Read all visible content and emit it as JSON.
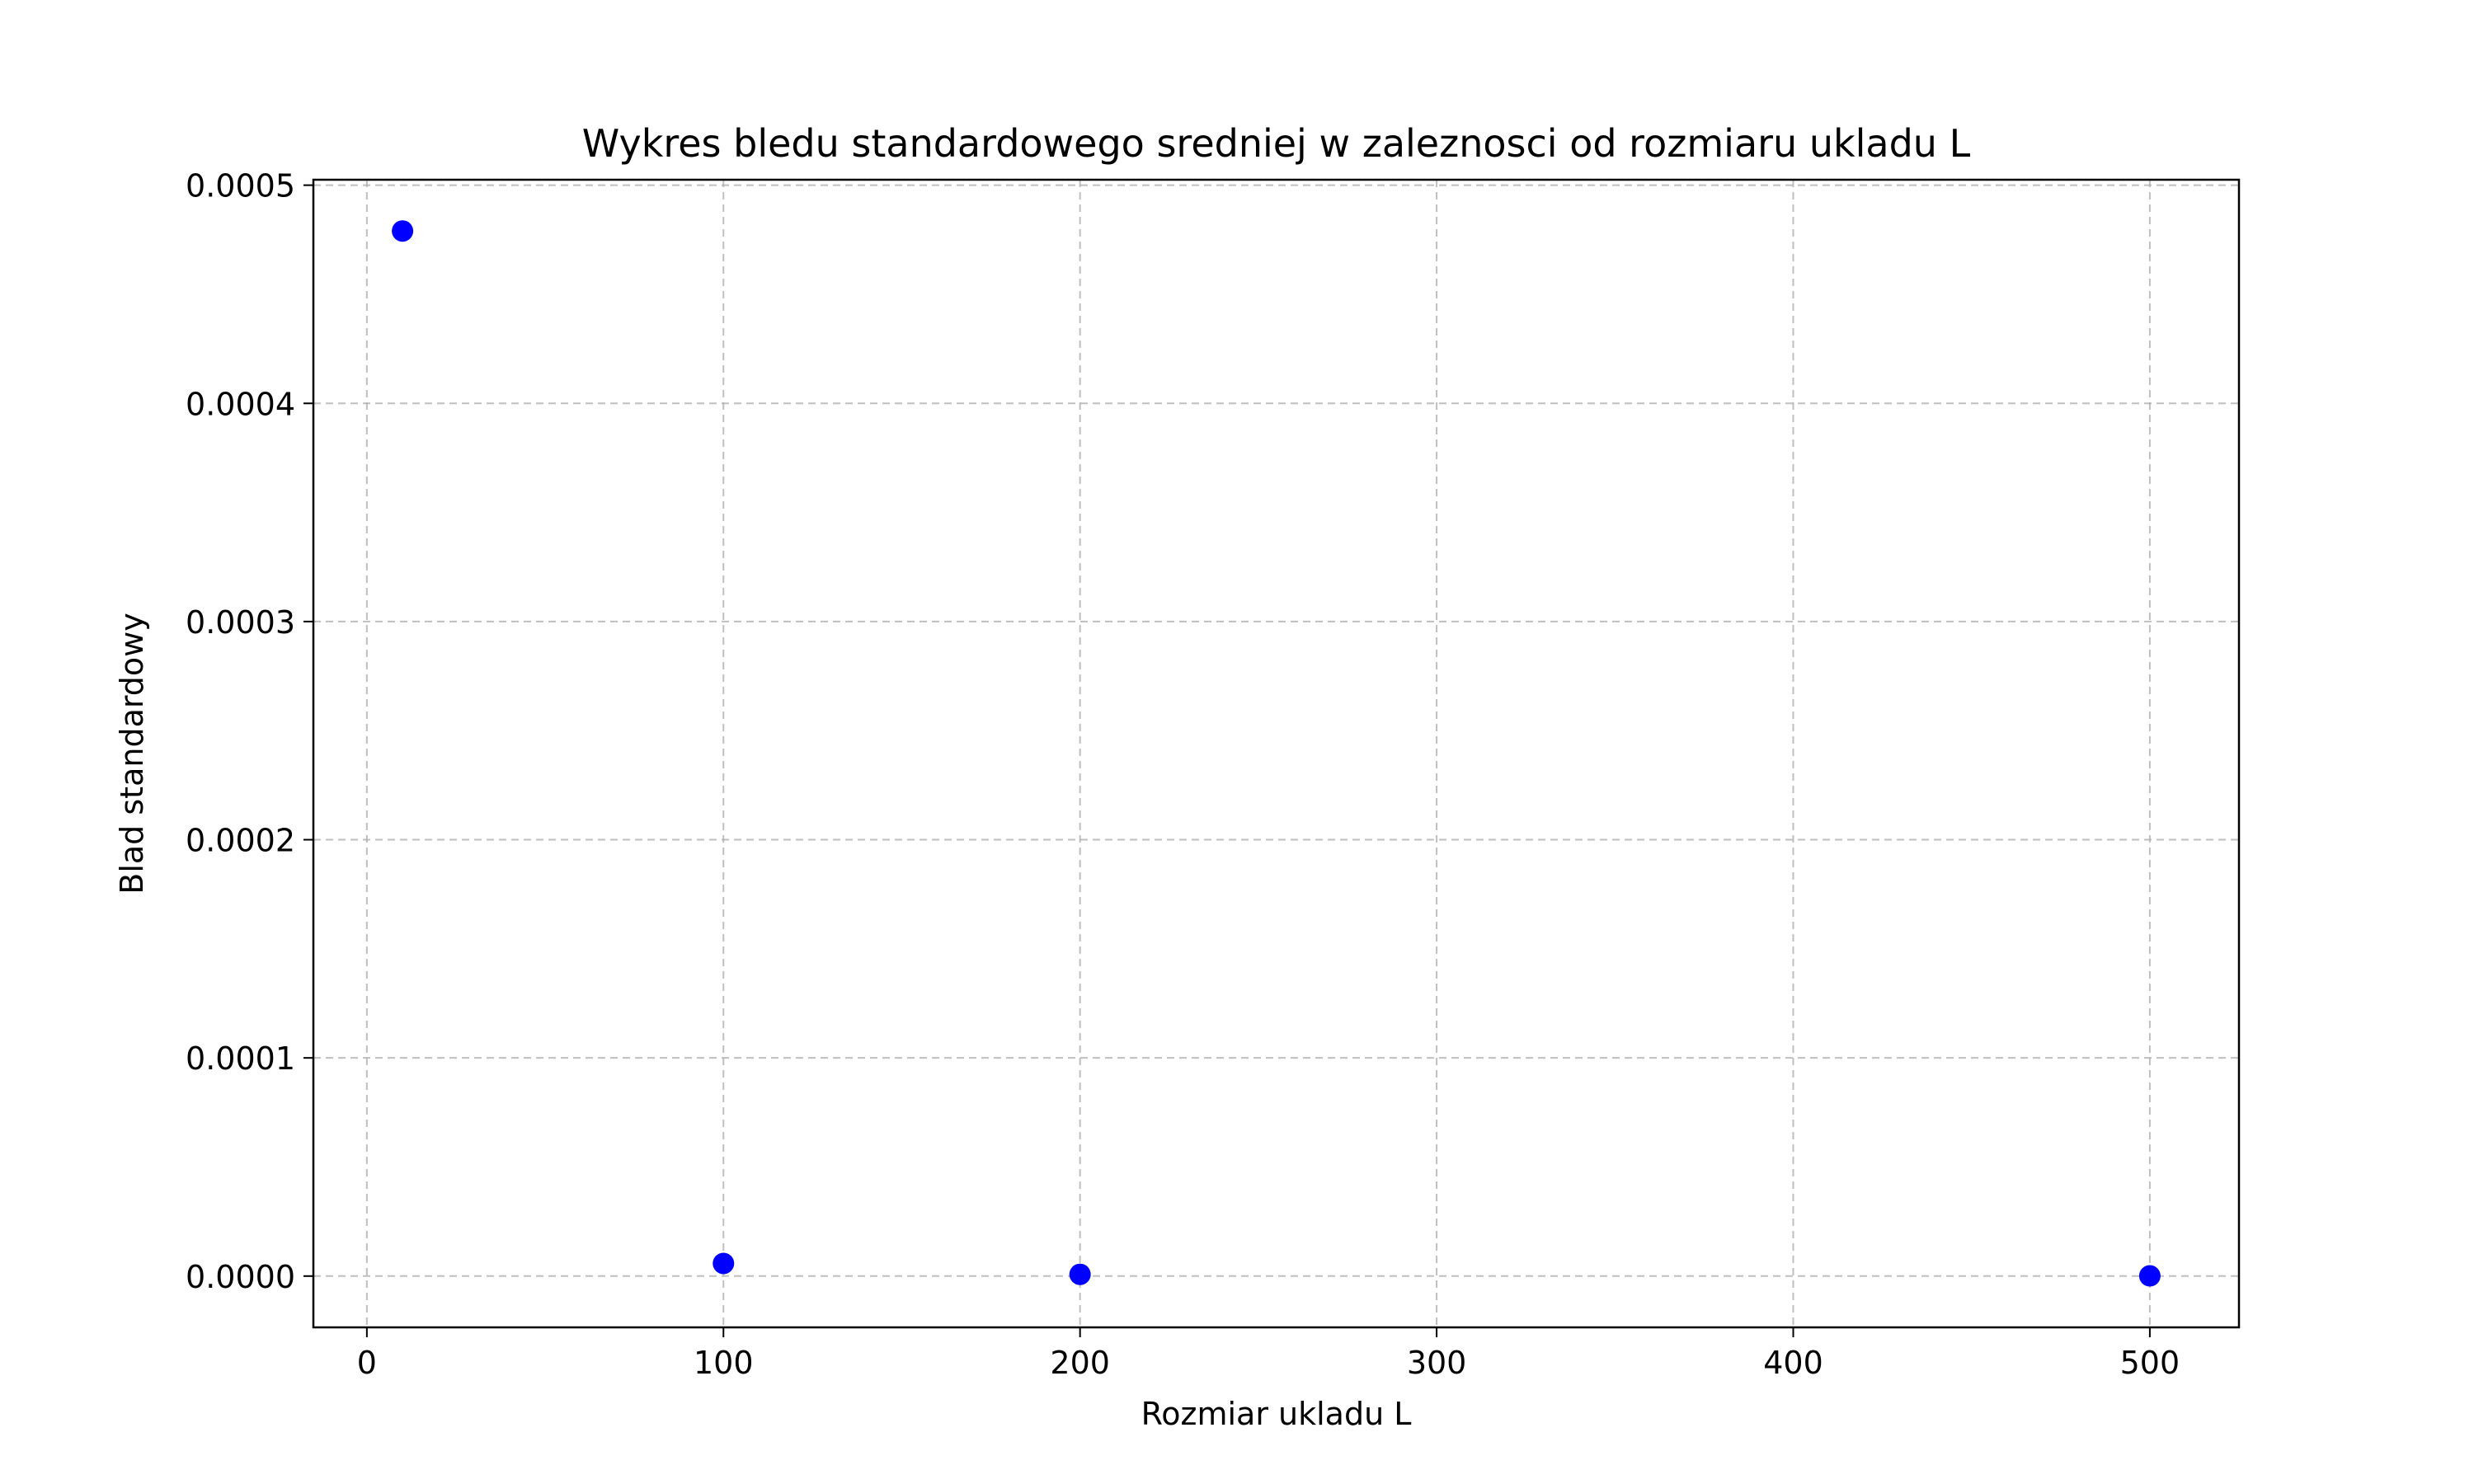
{
  "chart_data": {
    "type": "scatter",
    "title": "Wykres bledu standardowego sredniej w zaleznosci od rozmiaru ukladu L",
    "xlabel": "Rozmiar ukladu L",
    "ylabel": "Blad standardowy",
    "xlim": [
      -15,
      525
    ],
    "ylim": [
      -2.35e-05,
      0.0005025
    ],
    "xticks": [
      0,
      100,
      200,
      300,
      400,
      500
    ],
    "xtick_labels": [
      "0",
      "100",
      "200",
      "300",
      "400",
      "500"
    ],
    "yticks": [
      0,
      0.0001,
      0.0002,
      0.0003,
      0.0004,
      0.0005
    ],
    "ytick_labels": [
      "0.0000",
      "0.0001",
      "0.0002",
      "0.0003",
      "0.0004",
      "0.0005"
    ],
    "grid": true,
    "marker_color": "#0000ff",
    "points": [
      {
        "x": 10,
        "y": 0.000479
      },
      {
        "x": 100,
        "y": 5.8e-06
      },
      {
        "x": 200,
        "y": 8e-07
      },
      {
        "x": 500,
        "y": 1e-07
      }
    ]
  }
}
